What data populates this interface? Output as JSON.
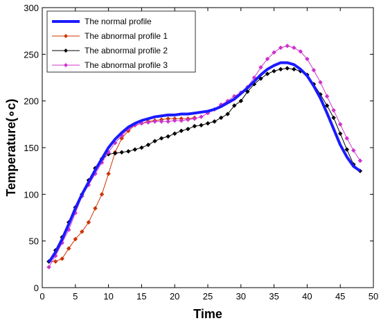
{
  "chart_data": {
    "type": "line",
    "xlabel": "Time",
    "ylabel": "Temperature(∘c)",
    "xlim": [
      0,
      50
    ],
    "ylim": [
      0,
      300
    ],
    "xticks": [
      0,
      5,
      10,
      15,
      20,
      25,
      30,
      35,
      40,
      45,
      50
    ],
    "yticks": [
      0,
      50,
      100,
      150,
      200,
      250,
      300
    ],
    "grid": false,
    "legend_position": "top-left",
    "series": [
      {
        "name": "The normal profile",
        "color": "#1a1aff",
        "marker": "none",
        "x": [
          1,
          2,
          3,
          4,
          5,
          6,
          7,
          8,
          9,
          10,
          11,
          12,
          13,
          14,
          15,
          16,
          17,
          18,
          19,
          20,
          21,
          22,
          23,
          24,
          25,
          26,
          27,
          28,
          29,
          30,
          31,
          32,
          33,
          34,
          35,
          36,
          37,
          38,
          39,
          40,
          41,
          42,
          43,
          44,
          45,
          46,
          47,
          48
        ],
        "y": [
          27,
          38,
          52,
          68,
          85,
          100,
          113,
          126,
          138,
          150,
          159,
          166,
          172,
          176,
          179,
          181,
          183,
          184,
          185,
          185,
          186,
          186,
          187,
          188,
          189,
          191,
          194,
          198,
          202,
          208,
          214,
          221,
          228,
          234,
          238,
          241,
          241,
          239,
          234,
          227,
          216,
          203,
          187,
          170,
          153,
          140,
          130,
          125
        ]
      },
      {
        "name": "The abnormal profile 1",
        "color": "#cc3300",
        "marker": "diamond",
        "x": [
          1,
          2,
          3,
          4,
          5,
          6,
          7,
          8,
          9,
          10,
          11,
          12,
          13,
          14,
          15,
          16,
          17,
          18,
          19,
          20,
          21,
          22,
          23
        ],
        "y": [
          28,
          28,
          31,
          42,
          52,
          60,
          70,
          85,
          100,
          122,
          145,
          160,
          168,
          174,
          176,
          178,
          179,
          180,
          181,
          181,
          181,
          181,
          182
        ]
      },
      {
        "name": "The abnormal profile 2",
        "color": "#000000",
        "marker": "diamond",
        "x": [
          1,
          2,
          3,
          4,
          5,
          6,
          7,
          8,
          9,
          10,
          11,
          12,
          13,
          14,
          15,
          16,
          17,
          18,
          19,
          20,
          21,
          22,
          23,
          24,
          25,
          26,
          27,
          28,
          29,
          30,
          31,
          32,
          33,
          34,
          35,
          36,
          37,
          38,
          39,
          40,
          41,
          42,
          43,
          44,
          45,
          46,
          47,
          48
        ],
        "y": [
          28,
          40,
          54,
          70,
          86,
          100,
          115,
          128,
          138,
          143,
          144,
          145,
          146,
          148,
          150,
          153,
          157,
          160,
          162,
          165,
          168,
          170,
          173,
          174,
          176,
          178,
          182,
          186,
          195,
          200,
          210,
          218,
          224,
          229,
          232,
          234,
          235,
          234,
          232,
          228,
          218,
          207,
          195,
          182,
          165,
          148,
          132,
          125
        ]
      },
      {
        "name": "The abnormal profile 3",
        "color": "#cc33cc",
        "marker": "diamond",
        "x": [
          1,
          2,
          3,
          4,
          5,
          6,
          7,
          8,
          9,
          10,
          11,
          12,
          13,
          14,
          15,
          16,
          17,
          18,
          19,
          20,
          21,
          22,
          23,
          24,
          25,
          26,
          27,
          28,
          29,
          30,
          31,
          32,
          33,
          34,
          35,
          36,
          37,
          38,
          39,
          40,
          41,
          42,
          43,
          44,
          45,
          46,
          47,
          48
        ],
        "y": [
          22,
          34,
          48,
          62,
          80,
          98,
          110,
          122,
          134,
          145,
          155,
          163,
          170,
          174,
          176,
          177,
          178,
          178,
          178,
          179,
          179,
          180,
          181,
          183,
          187,
          191,
          196,
          200,
          205,
          209,
          215,
          225,
          236,
          245,
          252,
          257,
          259,
          257,
          253,
          245,
          233,
          220,
          205,
          190,
          175,
          160,
          147,
          136
        ]
      }
    ]
  }
}
